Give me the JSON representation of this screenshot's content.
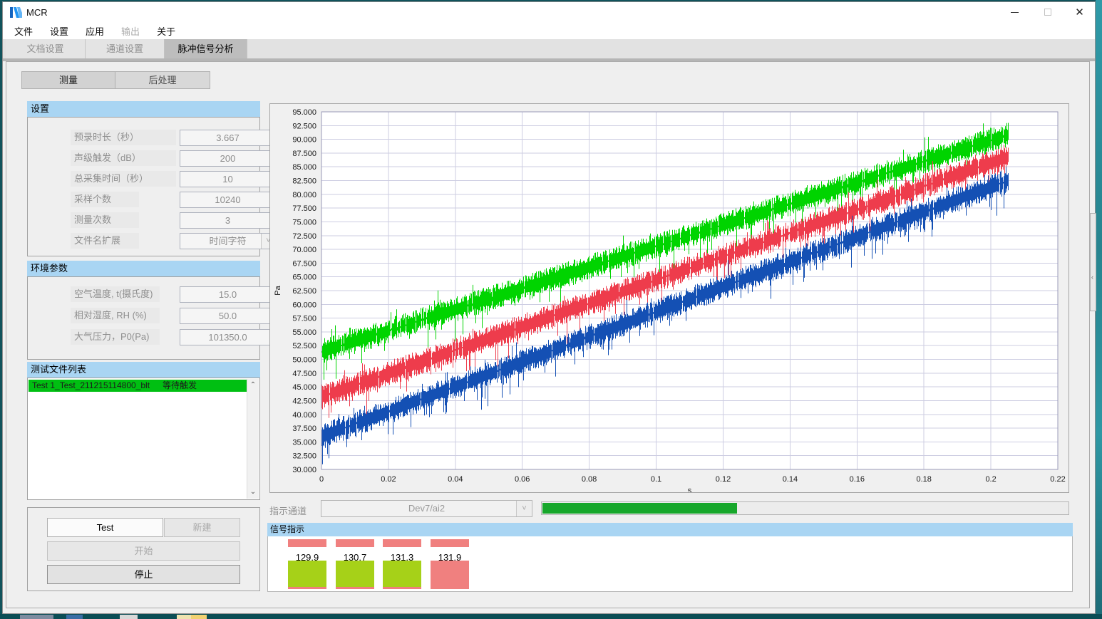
{
  "window": {
    "title": "MCR",
    "close_glyph": "✕"
  },
  "menu": {
    "items": [
      {
        "label": "文件",
        "enabled": true
      },
      {
        "label": "设置",
        "enabled": true
      },
      {
        "label": "应用",
        "enabled": true
      },
      {
        "label": "输出",
        "enabled": false
      },
      {
        "label": "关于",
        "enabled": true
      }
    ]
  },
  "tabs": [
    {
      "label": "文档设置",
      "active": false
    },
    {
      "label": "通道设置",
      "active": false
    },
    {
      "label": "脉冲信号分析",
      "active": true
    }
  ],
  "measure_tabs": [
    {
      "label": "测量",
      "active": true
    },
    {
      "label": "后处理",
      "active": false
    }
  ],
  "settings": {
    "title": "设置",
    "rows": [
      {
        "label": "预录时长（秒）",
        "value": "3.667"
      },
      {
        "label": "声级触发（dB）",
        "value": "200"
      },
      {
        "label": "总采集时间（秒）",
        "value": "10"
      },
      {
        "label": "采样个数",
        "value": "10240"
      },
      {
        "label": "测量次数",
        "value": "3"
      },
      {
        "label": "文件名扩展",
        "value": "时间字符",
        "type": "dropdown"
      }
    ]
  },
  "environment": {
    "title": "环境参数",
    "rows": [
      {
        "label": "空气温度, t(摄氏度)",
        "value": "15.0"
      },
      {
        "label": "相对湿度, RH (%)",
        "value": "50.0"
      },
      {
        "label": "大气压力，P0(Pa)",
        "value": "101350.0"
      }
    ]
  },
  "file_list": {
    "title": "测试文件列表",
    "items": [
      {
        "name": "Test 1_Test_211215114800_blt",
        "status": "等待触发",
        "highlight": "#00bf12"
      }
    ]
  },
  "controls": {
    "test_value": "Test",
    "new_label": "新建",
    "start_label": "开始",
    "stop_label": "停止"
  },
  "indicator": {
    "label": "指示通道",
    "channel": "Dev7/ai2",
    "progress_percent": 37,
    "progress_color": "#17a72b"
  },
  "signal": {
    "title": "信号指示",
    "cells": [
      {
        "value": "129.9",
        "state": "green"
      },
      {
        "value": "130.7",
        "state": "green"
      },
      {
        "value": "131.3",
        "state": "green"
      },
      {
        "value": "131.9",
        "state": "red"
      }
    ],
    "green_color": "#a6d118",
    "red_color": "#f0807f"
  },
  "icons": {
    "chevron_down": "˅",
    "scroll_up": "⌃",
    "scroll_down": "⌄",
    "handle": "‹"
  },
  "chart_data": {
    "type": "line",
    "title": "",
    "xlabel": "s",
    "ylabel": "Pa",
    "xlim": [
      0,
      0.22
    ],
    "ylim": [
      30,
      95
    ],
    "y_tick_step": 2.5,
    "x_ticks": [
      "0",
      "0.02",
      "0.04",
      "0.06",
      "0.08",
      "0.1",
      "0.12",
      "0.14",
      "0.16",
      "0.18",
      "0.2",
      "0.22"
    ],
    "grid": true,
    "legend": "none",
    "description": "Three dense noisy signal bands rising approximately linearly from t=0 to t=0.205 s",
    "series": [
      {
        "name": "signal-green",
        "color": "#00d400",
        "x_start": 0,
        "x_end": 0.205,
        "y_start": 51.4,
        "y_end": 90.8,
        "band": 2.1,
        "spike_down": 4.0,
        "spike_up": 2.3
      },
      {
        "name": "signal-red",
        "color": "#ee3c4c",
        "x_start": 0,
        "x_end": 0.205,
        "y_start": 43.2,
        "y_end": 86.8,
        "band": 2.1,
        "spike_down": 4.0,
        "spike_up": 2.3
      },
      {
        "name": "signal-blue",
        "color": "#1450b4",
        "x_start": 0,
        "x_end": 0.205,
        "y_start": 36.0,
        "y_end": 82.5,
        "band": 2.1,
        "spike_down": 4.0,
        "spike_up": 2.3
      }
    ]
  }
}
